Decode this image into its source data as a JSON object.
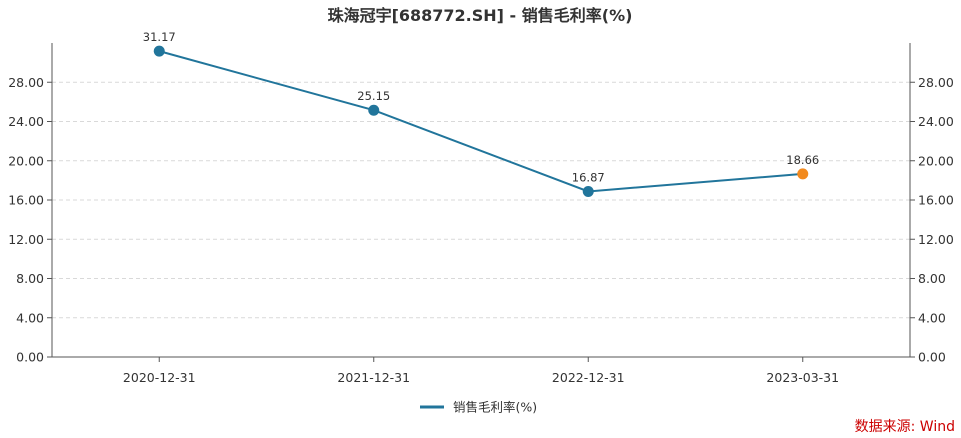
{
  "chart_data": {
    "type": "line",
    "title": "珠海冠宇[688772.SH] - 销售毛利率(%)",
    "categories": [
      "2020-12-31",
      "2021-12-31",
      "2022-12-31",
      "2023-03-31"
    ],
    "series": [
      {
        "name": "销售毛利率(%)",
        "values": [
          31.17,
          25.15,
          16.87,
          18.66
        ],
        "data_labels": [
          "31.17",
          "25.15",
          "16.87",
          "18.66"
        ]
      }
    ],
    "ylim": [
      0,
      32
    ],
    "yticks": [
      "0.00",
      "4.00",
      "8.00",
      "12.00",
      "16.00",
      "20.00",
      "24.00",
      "28.00"
    ],
    "grid": true,
    "legend_position": "bottom-center",
    "xlabel": "",
    "ylabel": ""
  },
  "source_note": "数据来源: Wind",
  "colors": {
    "line": "#21759b",
    "marker": "#21759b",
    "last_marker": "#f28a1e",
    "grid": "#d9d9d9",
    "axis": "#555555",
    "source": "#cc0000"
  }
}
